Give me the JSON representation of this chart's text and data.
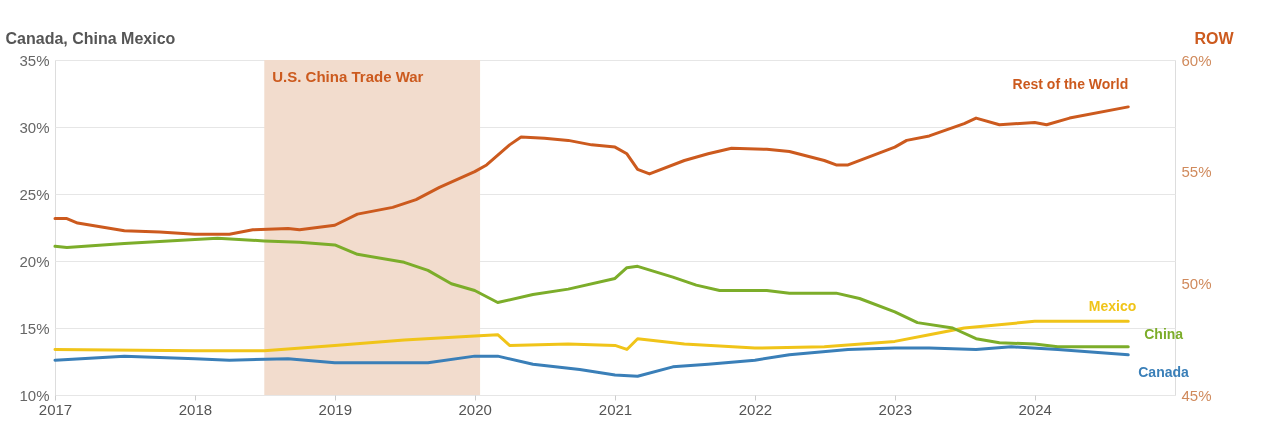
{
  "chart_data": {
    "type": "line",
    "ylabel": "Canada, China Mexico",
    "y2label": "ROW",
    "xlim": [
      "2017",
      "2025"
    ],
    "xticks": [
      "2017",
      "2018",
      "2019",
      "2020",
      "2021",
      "2022",
      "2023",
      "2024"
    ],
    "ylim": [
      10,
      35
    ],
    "yticks": [
      {
        "value": 10,
        "label": "10%"
      },
      {
        "value": 15,
        "label": "15%"
      },
      {
        "value": 20,
        "label": "20%"
      },
      {
        "value": 25,
        "label": "25%"
      },
      {
        "value": 30,
        "label": "30%"
      },
      {
        "value": 35,
        "label": "35%"
      }
    ],
    "y2lim": [
      45,
      60
    ],
    "y2ticks": [
      {
        "value": 45,
        "label": "45%"
      },
      {
        "value": 50,
        "label": "50%"
      },
      {
        "value": 55,
        "label": "55%"
      },
      {
        "value": 60,
        "label": "60%"
      }
    ],
    "grid": "y",
    "line_style": "solid",
    "marker": "none",
    "bands": [
      {
        "axis": "x",
        "from": "2018-07",
        "to": "2020-01-15",
        "label": "U.S. China Trade War",
        "color": "#f2dccd"
      }
    ],
    "series": [
      {
        "name": "Rest of the World",
        "color": "#cc5a1e",
        "axis": "y2",
        "x": [
          "2017-01",
          "2017-02",
          "2017-03",
          "2017-07",
          "2017-10",
          "2018-01",
          "2018-04",
          "2018-06",
          "2018-09",
          "2018-10",
          "2019-01",
          "2019-03",
          "2019-06",
          "2019-08",
          "2019-10",
          "2020-01",
          "2020-02",
          "2020-04",
          "2020-05",
          "2020-07",
          "2020-09",
          "2020-11",
          "2021-01",
          "2021-02",
          "2021-03",
          "2021-04",
          "2021-07",
          "2021-09",
          "2021-11",
          "2022-02",
          "2022-04",
          "2022-07",
          "2022-08",
          "2022-09",
          "2023-01",
          "2023-02",
          "2023-04",
          "2023-07",
          "2023-08",
          "2023-10",
          "2024-01",
          "2024-02",
          "2024-04",
          "2024-09"
        ],
        "values": [
          52.9,
          52.9,
          52.7,
          52.35,
          52.3,
          52.2,
          52.2,
          52.4,
          52.45,
          52.4,
          52.6,
          53.1,
          53.4,
          53.75,
          54.3,
          55.0,
          55.3,
          56.2,
          56.55,
          56.5,
          56.4,
          56.2,
          56.1,
          55.8,
          55.1,
          54.9,
          55.5,
          55.8,
          56.05,
          56.0,
          55.9,
          55.5,
          55.3,
          55.3,
          56.1,
          56.4,
          56.6,
          57.15,
          57.4,
          57.1,
          57.2,
          57.1,
          57.4,
          57.9
        ]
      },
      {
        "name": "Mexico",
        "color": "#f0c419",
        "x": [
          "2017-01",
          "2018-01",
          "2018-07",
          "2019-01",
          "2019-07",
          "2020-01",
          "2020-03",
          "2020-04",
          "2020-09",
          "2021-01",
          "2021-02",
          "2021-03",
          "2021-07",
          "2022-01",
          "2022-07",
          "2023-01",
          "2023-04",
          "2023-07",
          "2024-01",
          "2024-09"
        ],
        "values": [
          13.4,
          13.3,
          13.3,
          13.7,
          14.1,
          14.4,
          14.5,
          13.7,
          13.8,
          13.7,
          13.4,
          14.2,
          13.8,
          13.5,
          13.6,
          14.0,
          14.5,
          15.0,
          15.5,
          15.5
        ]
      },
      {
        "name": "China",
        "color": "#7cad2a",
        "x": [
          "2017-01",
          "2017-02",
          "2017-07",
          "2018-01",
          "2018-03",
          "2018-07",
          "2018-10",
          "2019-01",
          "2019-03",
          "2019-07",
          "2019-09",
          "2019-11",
          "2020-01",
          "2020-03",
          "2020-06",
          "2020-09",
          "2021-01",
          "2021-02",
          "2021-03",
          "2021-06",
          "2021-08",
          "2021-10",
          "2022-02",
          "2022-04",
          "2022-08",
          "2022-10",
          "2023-01",
          "2023-03",
          "2023-06",
          "2023-08",
          "2023-10",
          "2024-01",
          "2024-03",
          "2024-09"
        ],
        "values": [
          21.1,
          21.0,
          21.3,
          21.6,
          21.7,
          21.5,
          21.4,
          21.2,
          20.5,
          19.9,
          19.3,
          18.3,
          17.8,
          16.9,
          17.5,
          17.9,
          18.7,
          19.5,
          19.6,
          18.8,
          18.2,
          17.8,
          17.8,
          17.6,
          17.6,
          17.2,
          16.2,
          15.4,
          15.0,
          14.2,
          13.9,
          13.8,
          13.6,
          13.6
        ]
      },
      {
        "name": "Canada",
        "color": "#3a7fb8",
        "x": [
          "2017-01",
          "2017-07",
          "2018-01",
          "2018-04",
          "2018-09",
          "2019-01",
          "2019-09",
          "2020-01",
          "2020-03",
          "2020-06",
          "2020-10",
          "2021-01",
          "2021-03",
          "2021-06",
          "2021-09",
          "2022-01",
          "2022-04",
          "2022-09",
          "2023-01",
          "2023-04",
          "2023-08",
          "2023-11",
          "2024-03",
          "2024-09"
        ],
        "values": [
          12.6,
          12.9,
          12.7,
          12.6,
          12.7,
          12.4,
          12.4,
          12.9,
          12.9,
          12.3,
          11.9,
          11.5,
          11.4,
          12.1,
          12.3,
          12.6,
          13.0,
          13.4,
          13.5,
          13.5,
          13.4,
          13.6,
          13.4,
          13.0
        ]
      }
    ]
  }
}
